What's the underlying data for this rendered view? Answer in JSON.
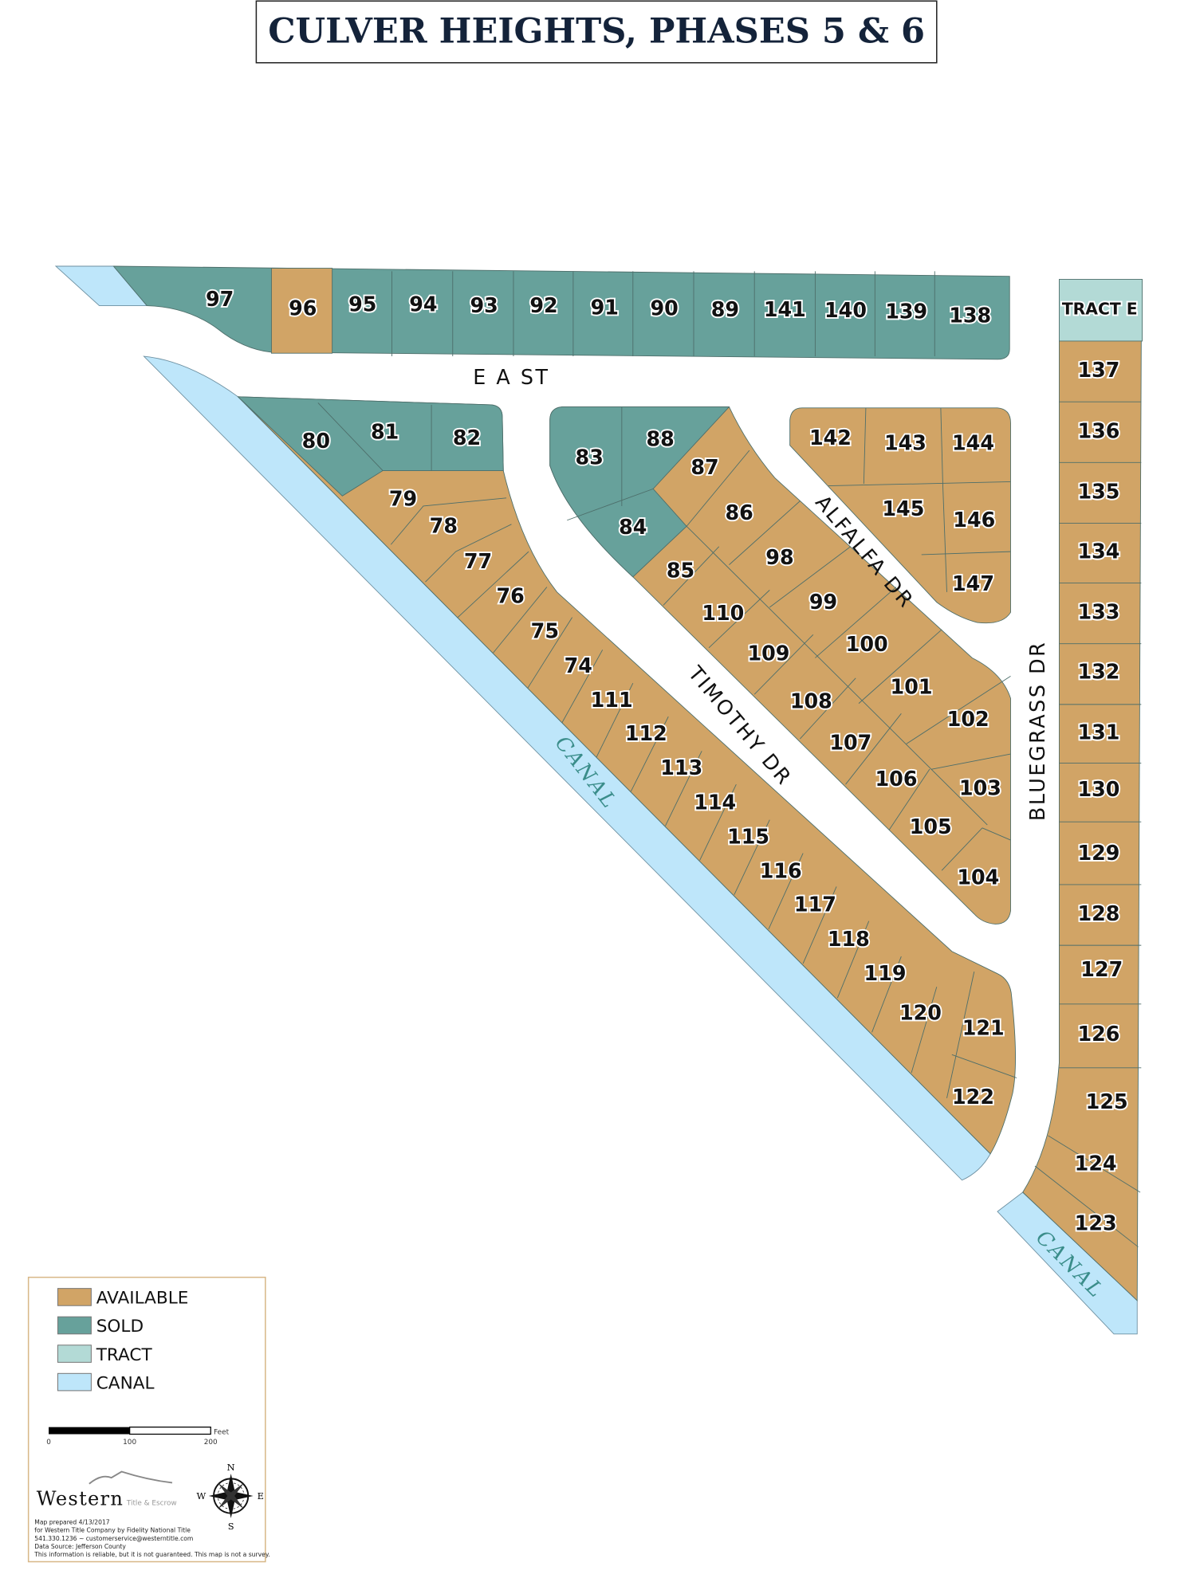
{
  "title": "CULVER HEIGHTS, PHASES 5 & 6",
  "colors": {
    "available": "#D1A466",
    "sold": "#67A19B",
    "tract": "#B3DAD6",
    "canal": "#BEE6FA",
    "title": "#14233A",
    "canal_label": "#3A8D8A"
  },
  "streets": {
    "east_a": "E A ST",
    "alfalfa": "ALFALFA DR",
    "timothy": "TIMOTHY DR",
    "bluegrass": "BLUEGRASS DR"
  },
  "canal_labels": [
    "CANAL",
    "CANAL"
  ],
  "tract_e": {
    "label": "TRACT E",
    "status": "tract"
  },
  "lots": [
    {
      "id": "97",
      "status": "sold"
    },
    {
      "id": "96",
      "status": "available"
    },
    {
      "id": "95",
      "status": "sold"
    },
    {
      "id": "94",
      "status": "sold"
    },
    {
      "id": "93",
      "status": "sold"
    },
    {
      "id": "92",
      "status": "sold"
    },
    {
      "id": "91",
      "status": "sold"
    },
    {
      "id": "90",
      "status": "sold"
    },
    {
      "id": "89",
      "status": "sold"
    },
    {
      "id": "141",
      "status": "sold"
    },
    {
      "id": "140",
      "status": "sold"
    },
    {
      "id": "139",
      "status": "sold"
    },
    {
      "id": "138",
      "status": "sold"
    },
    {
      "id": "137",
      "status": "available"
    },
    {
      "id": "136",
      "status": "available"
    },
    {
      "id": "135",
      "status": "available"
    },
    {
      "id": "134",
      "status": "available"
    },
    {
      "id": "133",
      "status": "available"
    },
    {
      "id": "132",
      "status": "available"
    },
    {
      "id": "131",
      "status": "available"
    },
    {
      "id": "130",
      "status": "available"
    },
    {
      "id": "129",
      "status": "available"
    },
    {
      "id": "128",
      "status": "available"
    },
    {
      "id": "127",
      "status": "available"
    },
    {
      "id": "126",
      "status": "available"
    },
    {
      "id": "125",
      "status": "available"
    },
    {
      "id": "124",
      "status": "available"
    },
    {
      "id": "123",
      "status": "available"
    },
    {
      "id": "80",
      "status": "sold"
    },
    {
      "id": "81",
      "status": "sold"
    },
    {
      "id": "82",
      "status": "sold"
    },
    {
      "id": "79",
      "status": "available"
    },
    {
      "id": "78",
      "status": "available"
    },
    {
      "id": "77",
      "status": "available"
    },
    {
      "id": "76",
      "status": "available"
    },
    {
      "id": "75",
      "status": "available"
    },
    {
      "id": "74",
      "status": "available"
    },
    {
      "id": "111",
      "status": "available"
    },
    {
      "id": "112",
      "status": "available"
    },
    {
      "id": "113",
      "status": "available"
    },
    {
      "id": "114",
      "status": "available"
    },
    {
      "id": "115",
      "status": "available"
    },
    {
      "id": "116",
      "status": "available"
    },
    {
      "id": "117",
      "status": "available"
    },
    {
      "id": "118",
      "status": "available"
    },
    {
      "id": "119",
      "status": "available"
    },
    {
      "id": "120",
      "status": "available"
    },
    {
      "id": "121",
      "status": "available"
    },
    {
      "id": "122",
      "status": "available"
    },
    {
      "id": "83",
      "status": "sold"
    },
    {
      "id": "88",
      "status": "sold"
    },
    {
      "id": "84",
      "status": "sold"
    },
    {
      "id": "87",
      "status": "available"
    },
    {
      "id": "86",
      "status": "available"
    },
    {
      "id": "85",
      "status": "available"
    },
    {
      "id": "98",
      "status": "available"
    },
    {
      "id": "110",
      "status": "available"
    },
    {
      "id": "99",
      "status": "available"
    },
    {
      "id": "109",
      "status": "available"
    },
    {
      "id": "100",
      "status": "available"
    },
    {
      "id": "108",
      "status": "available"
    },
    {
      "id": "101",
      "status": "available"
    },
    {
      "id": "107",
      "status": "available"
    },
    {
      "id": "102",
      "status": "available"
    },
    {
      "id": "106",
      "status": "available"
    },
    {
      "id": "103",
      "status": "available"
    },
    {
      "id": "105",
      "status": "available"
    },
    {
      "id": "104",
      "status": "available"
    },
    {
      "id": "142",
      "status": "available"
    },
    {
      "id": "143",
      "status": "available"
    },
    {
      "id": "144",
      "status": "available"
    },
    {
      "id": "145",
      "status": "available"
    },
    {
      "id": "146",
      "status": "available"
    },
    {
      "id": "147",
      "status": "available"
    }
  ],
  "legend": {
    "items": [
      {
        "label": "AVAILABLE",
        "status": "available"
      },
      {
        "label": "SOLD",
        "status": "sold"
      },
      {
        "label": "TRACT",
        "status": "tract"
      },
      {
        "label": "CANAL",
        "status": "canal"
      }
    ],
    "scale": {
      "ticks": [
        "0",
        "100",
        "200"
      ],
      "unit": "Feet"
    },
    "logo": {
      "name": "Western",
      "tagline": "Title & Escrow"
    },
    "compass": {
      "n": "N",
      "s": "S",
      "e": "E",
      "w": "W"
    },
    "notes": [
      "Map prepared 4/13/2017",
      "for Western Title Company by Fidelity National Title",
      "541.330.1236 ~ customerservice@westerntitle.com",
      "Data Source: Jefferson County",
      "This information is reliable, but it is not guaranteed. This map is not a survey."
    ]
  }
}
